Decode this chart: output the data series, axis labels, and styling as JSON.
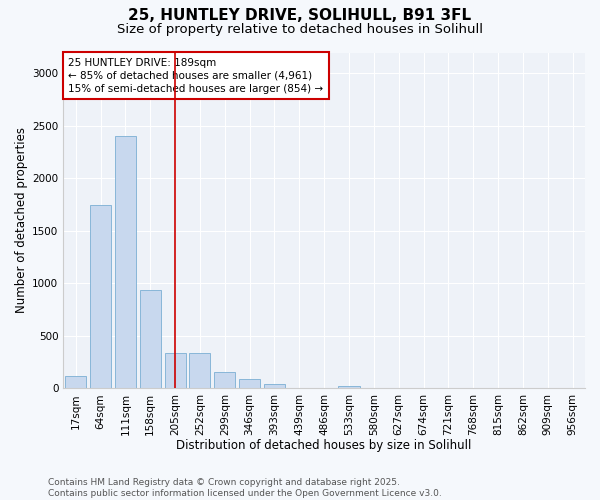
{
  "title_line1": "25, HUNTLEY DRIVE, SOLIHULL, B91 3FL",
  "title_line2": "Size of property relative to detached houses in Solihull",
  "xlabel": "Distribution of detached houses by size in Solihull",
  "ylabel": "Number of detached properties",
  "bar_color": "#c8d8ee",
  "bar_edge_color": "#7bafd4",
  "background_color": "#eef2f8",
  "grid_color": "#ffffff",
  "annotation_box_color": "#cc0000",
  "annotation_text": "25 HUNTLEY DRIVE: 189sqm\n← 85% of detached houses are smaller (4,961)\n15% of semi-detached houses are larger (854) →",
  "vline_color": "#cc0000",
  "categories": [
    "17sqm",
    "64sqm",
    "111sqm",
    "158sqm",
    "205sqm",
    "252sqm",
    "299sqm",
    "346sqm",
    "393sqm",
    "439sqm",
    "486sqm",
    "533sqm",
    "580sqm",
    "627sqm",
    "674sqm",
    "721sqm",
    "768sqm",
    "815sqm",
    "862sqm",
    "909sqm",
    "956sqm"
  ],
  "values": [
    120,
    1750,
    2400,
    940,
    340,
    340,
    155,
    85,
    45,
    0,
    0,
    20,
    0,
    0,
    0,
    0,
    0,
    0,
    0,
    0,
    0
  ],
  "ylim": [
    0,
    3200
  ],
  "yticks": [
    0,
    500,
    1000,
    1500,
    2000,
    2500,
    3000
  ],
  "footer_text": "Contains HM Land Registry data © Crown copyright and database right 2025.\nContains public sector information licensed under the Open Government Licence v3.0.",
  "title_fontsize": 11,
  "subtitle_fontsize": 9.5,
  "axis_label_fontsize": 8.5,
  "tick_fontsize": 7.5,
  "annotation_fontsize": 7.5,
  "footer_fontsize": 6.5
}
